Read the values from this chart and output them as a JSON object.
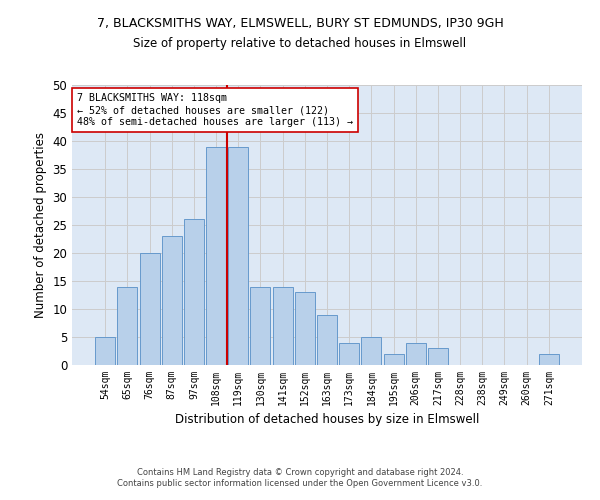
{
  "title1": "7, BLACKSMITHS WAY, ELMSWELL, BURY ST EDMUNDS, IP30 9GH",
  "title2": "Size of property relative to detached houses in Elmswell",
  "xlabel": "Distribution of detached houses by size in Elmswell",
  "ylabel": "Number of detached properties",
  "categories": [
    "54sqm",
    "65sqm",
    "76sqm",
    "87sqm",
    "97sqm",
    "108sqm",
    "119sqm",
    "130sqm",
    "141sqm",
    "152sqm",
    "163sqm",
    "173sqm",
    "184sqm",
    "195sqm",
    "206sqm",
    "217sqm",
    "228sqm",
    "238sqm",
    "249sqm",
    "260sqm",
    "271sqm"
  ],
  "values": [
    5,
    14,
    20,
    23,
    26,
    39,
    39,
    14,
    14,
    13,
    9,
    4,
    5,
    2,
    4,
    3,
    0,
    0,
    0,
    0,
    2
  ],
  "bar_color": "#b8d0ea",
  "bar_edge_color": "#6699cc",
  "vline_color": "#cc0000",
  "annotation_text": "7 BLACKSMITHS WAY: 118sqm\n← 52% of detached houses are smaller (122)\n48% of semi-detached houses are larger (113) →",
  "annotation_box_color": "#ffffff",
  "annotation_box_edge": "#cc0000",
  "ylim": [
    0,
    50
  ],
  "yticks": [
    0,
    5,
    10,
    15,
    20,
    25,
    30,
    35,
    40,
    45,
    50
  ],
  "grid_color": "#cccccc",
  "bg_color": "#dde8f5",
  "footer1": "Contains HM Land Registry data © Crown copyright and database right 2024.",
  "footer2": "Contains public sector information licensed under the Open Government Licence v3.0."
}
